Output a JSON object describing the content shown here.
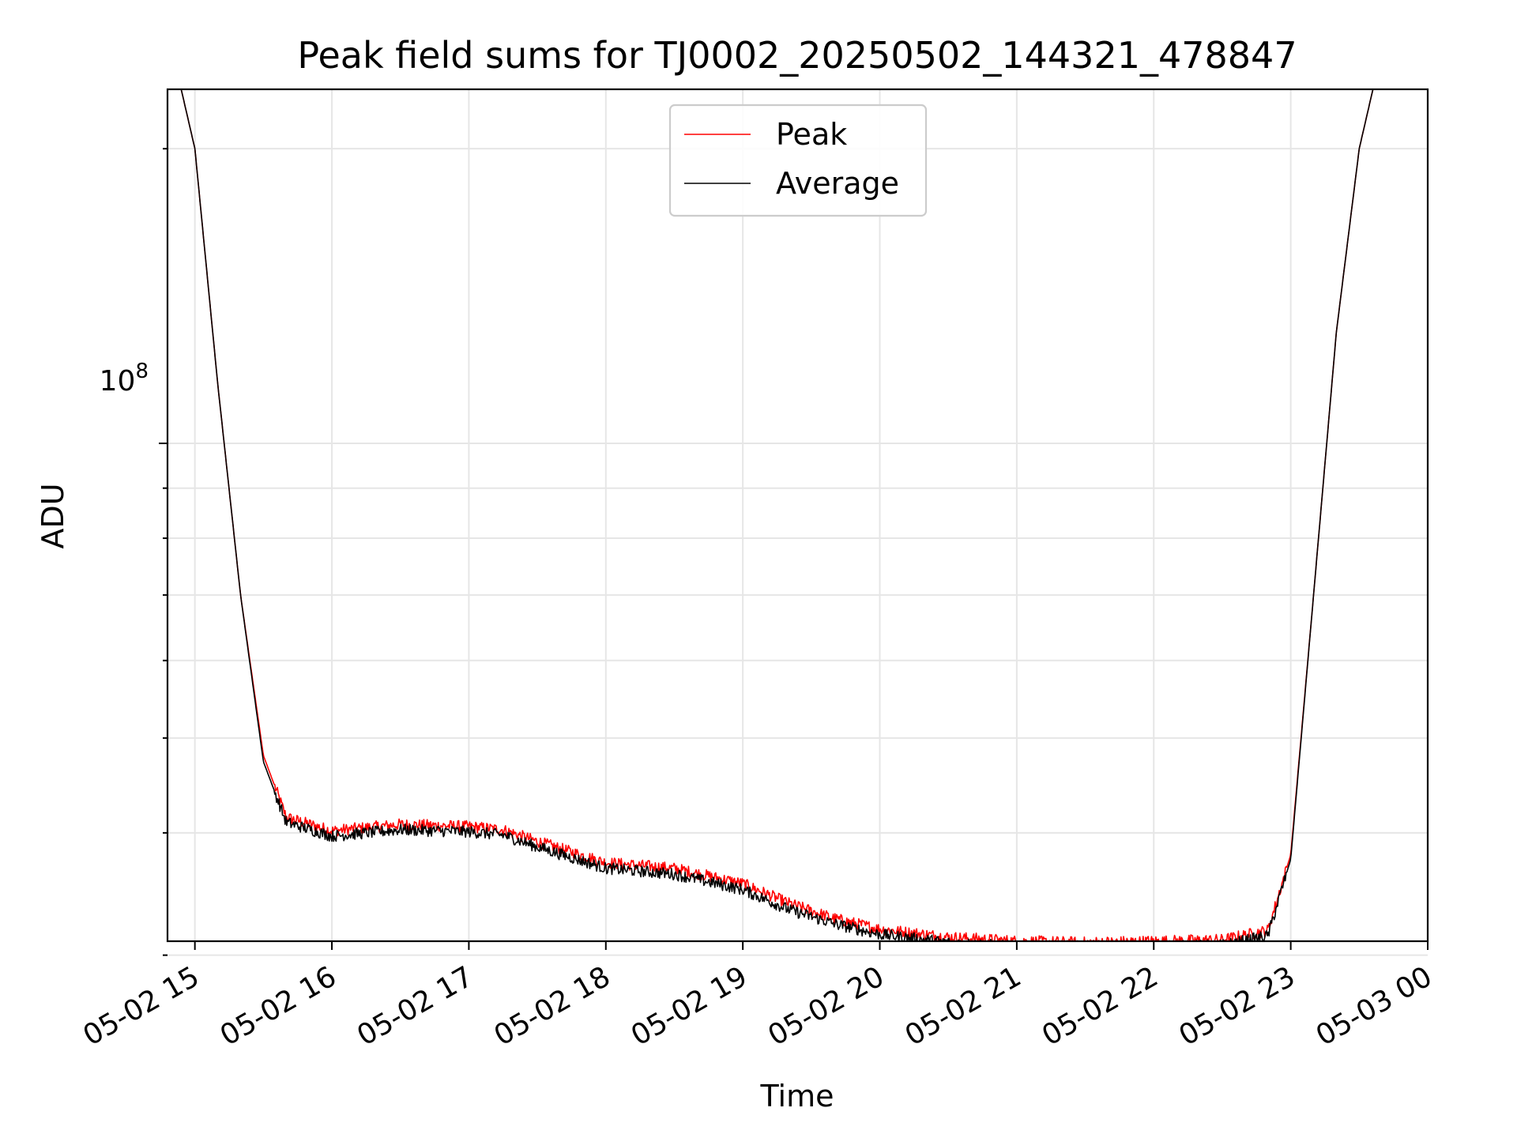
{
  "chart_data": {
    "type": "line",
    "title": "Peak field sums for TJ0002_20250502_144321_478847",
    "xlabel": "Time",
    "ylabel": "ADU",
    "y_scale": "log",
    "grid": true,
    "legend_position": "upper center",
    "x_tick_labels": [
      "05-02 15",
      "05-02 16",
      "05-02 17",
      "05-02 18",
      "05-02 19",
      "05-02 20",
      "05-02 21",
      "05-02 22",
      "05-02 23",
      "05-03 00"
    ],
    "y_tick_label": {
      "base": "10",
      "exponent": "8"
    },
    "xlim": [
      "2025-05-02 14:48",
      "2025-05-03 00:00"
    ],
    "ylim": [
      31000000,
      230000000
    ],
    "series": [
      {
        "name": "Peak",
        "color": "#ff0000",
        "x": [
          "2025-05-02 14:54",
          "2025-05-02 15:00",
          "2025-05-02 15:10",
          "2025-05-02 15:20",
          "2025-05-02 15:30",
          "2025-05-02 15:40",
          "2025-05-02 16:00",
          "2025-05-02 16:30",
          "2025-05-02 17:00",
          "2025-05-02 17:15",
          "2025-05-02 17:30",
          "2025-05-02 18:00",
          "2025-05-02 18:30",
          "2025-05-02 19:00",
          "2025-05-02 19:20",
          "2025-05-02 19:40",
          "2025-05-02 20:00",
          "2025-05-02 20:30",
          "2025-05-02 21:00",
          "2025-05-02 21:30",
          "2025-05-02 22:00",
          "2025-05-02 22:30",
          "2025-05-02 22:50",
          "2025-05-02 23:00",
          "2025-05-02 23:10",
          "2025-05-02 23:20",
          "2025-05-02 23:30",
          "2025-05-02 23:36"
        ],
        "values": [
          230000000,
          200000000,
          115000000,
          70000000,
          48000000,
          41500000,
          40200000,
          40800000,
          40600000,
          40300000,
          39200000,
          37300000,
          36800000,
          35500000,
          33900000,
          32700000,
          31900000,
          31300000,
          31000000,
          30900000,
          31000000,
          31100000,
          31800000,
          38000000,
          70000000,
          130000000,
          200000000,
          230000000
        ]
      },
      {
        "name": "Average",
        "color": "#000000",
        "x": [
          "2025-05-02 14:54",
          "2025-05-02 15:00",
          "2025-05-02 15:10",
          "2025-05-02 15:20",
          "2025-05-02 15:30",
          "2025-05-02 15:40",
          "2025-05-02 16:00",
          "2025-05-02 16:30",
          "2025-05-02 17:00",
          "2025-05-02 17:15",
          "2025-05-02 17:30",
          "2025-05-02 18:00",
          "2025-05-02 18:30",
          "2025-05-02 19:00",
          "2025-05-02 19:20",
          "2025-05-02 19:40",
          "2025-05-02 20:00",
          "2025-05-02 20:30",
          "2025-05-02 21:00",
          "2025-05-02 21:30",
          "2025-05-02 22:00",
          "2025-05-02 22:30",
          "2025-05-02 22:50",
          "2025-05-02 23:00",
          "2025-05-02 23:10",
          "2025-05-02 23:20",
          "2025-05-02 23:30",
          "2025-05-02 23:36"
        ],
        "values": [
          230000000,
          200000000,
          115000000,
          70000000,
          47300000,
          41000000,
          39700000,
          40300000,
          40100000,
          39800000,
          38700000,
          36800000,
          36300000,
          35000000,
          33400000,
          32300000,
          31500000,
          30900000,
          30600000,
          30500000,
          30600000,
          30700000,
          31400000,
          37600000,
          70000000,
          130000000,
          200000000,
          230000000
        ]
      }
    ]
  }
}
